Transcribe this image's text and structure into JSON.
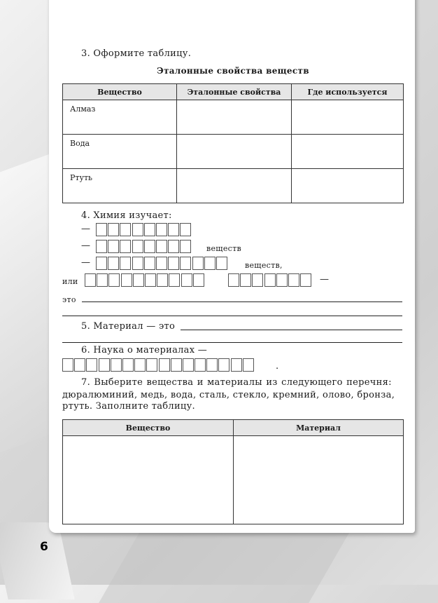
{
  "page_number": "6",
  "task3": {
    "prompt": "3. Оформите таблицу.",
    "table_title": "Эталонные свойства веществ",
    "headers": [
      "Вещество",
      "Эталонные свойства",
      "Где используется"
    ],
    "rows": [
      [
        "Алмаз",
        "",
        ""
      ],
      [
        "Вода",
        "",
        ""
      ],
      [
        "Ртуть",
        "",
        ""
      ]
    ]
  },
  "task4": {
    "prompt": "4. Химия изучает:",
    "dash": "—",
    "line2_suffix": "веществ",
    "line3_suffix": "веществ,",
    "or_prefix": "или",
    "or_suffix": "—",
    "is_label": "это"
  },
  "task5": {
    "prompt": "5. Материал — это"
  },
  "task6": {
    "prompt": "6. Наука о материалах —",
    "end": "."
  },
  "task7": {
    "lines": [
      "7. Выберите вещества и материалы из следующего перечня:",
      "дюралюминий, медь, вода, сталь, стекло, кремний, олово, бронза,",
      "ртуть. Заполните таблицу."
    ],
    "headers": [
      "Вещество",
      "Материал"
    ]
  }
}
